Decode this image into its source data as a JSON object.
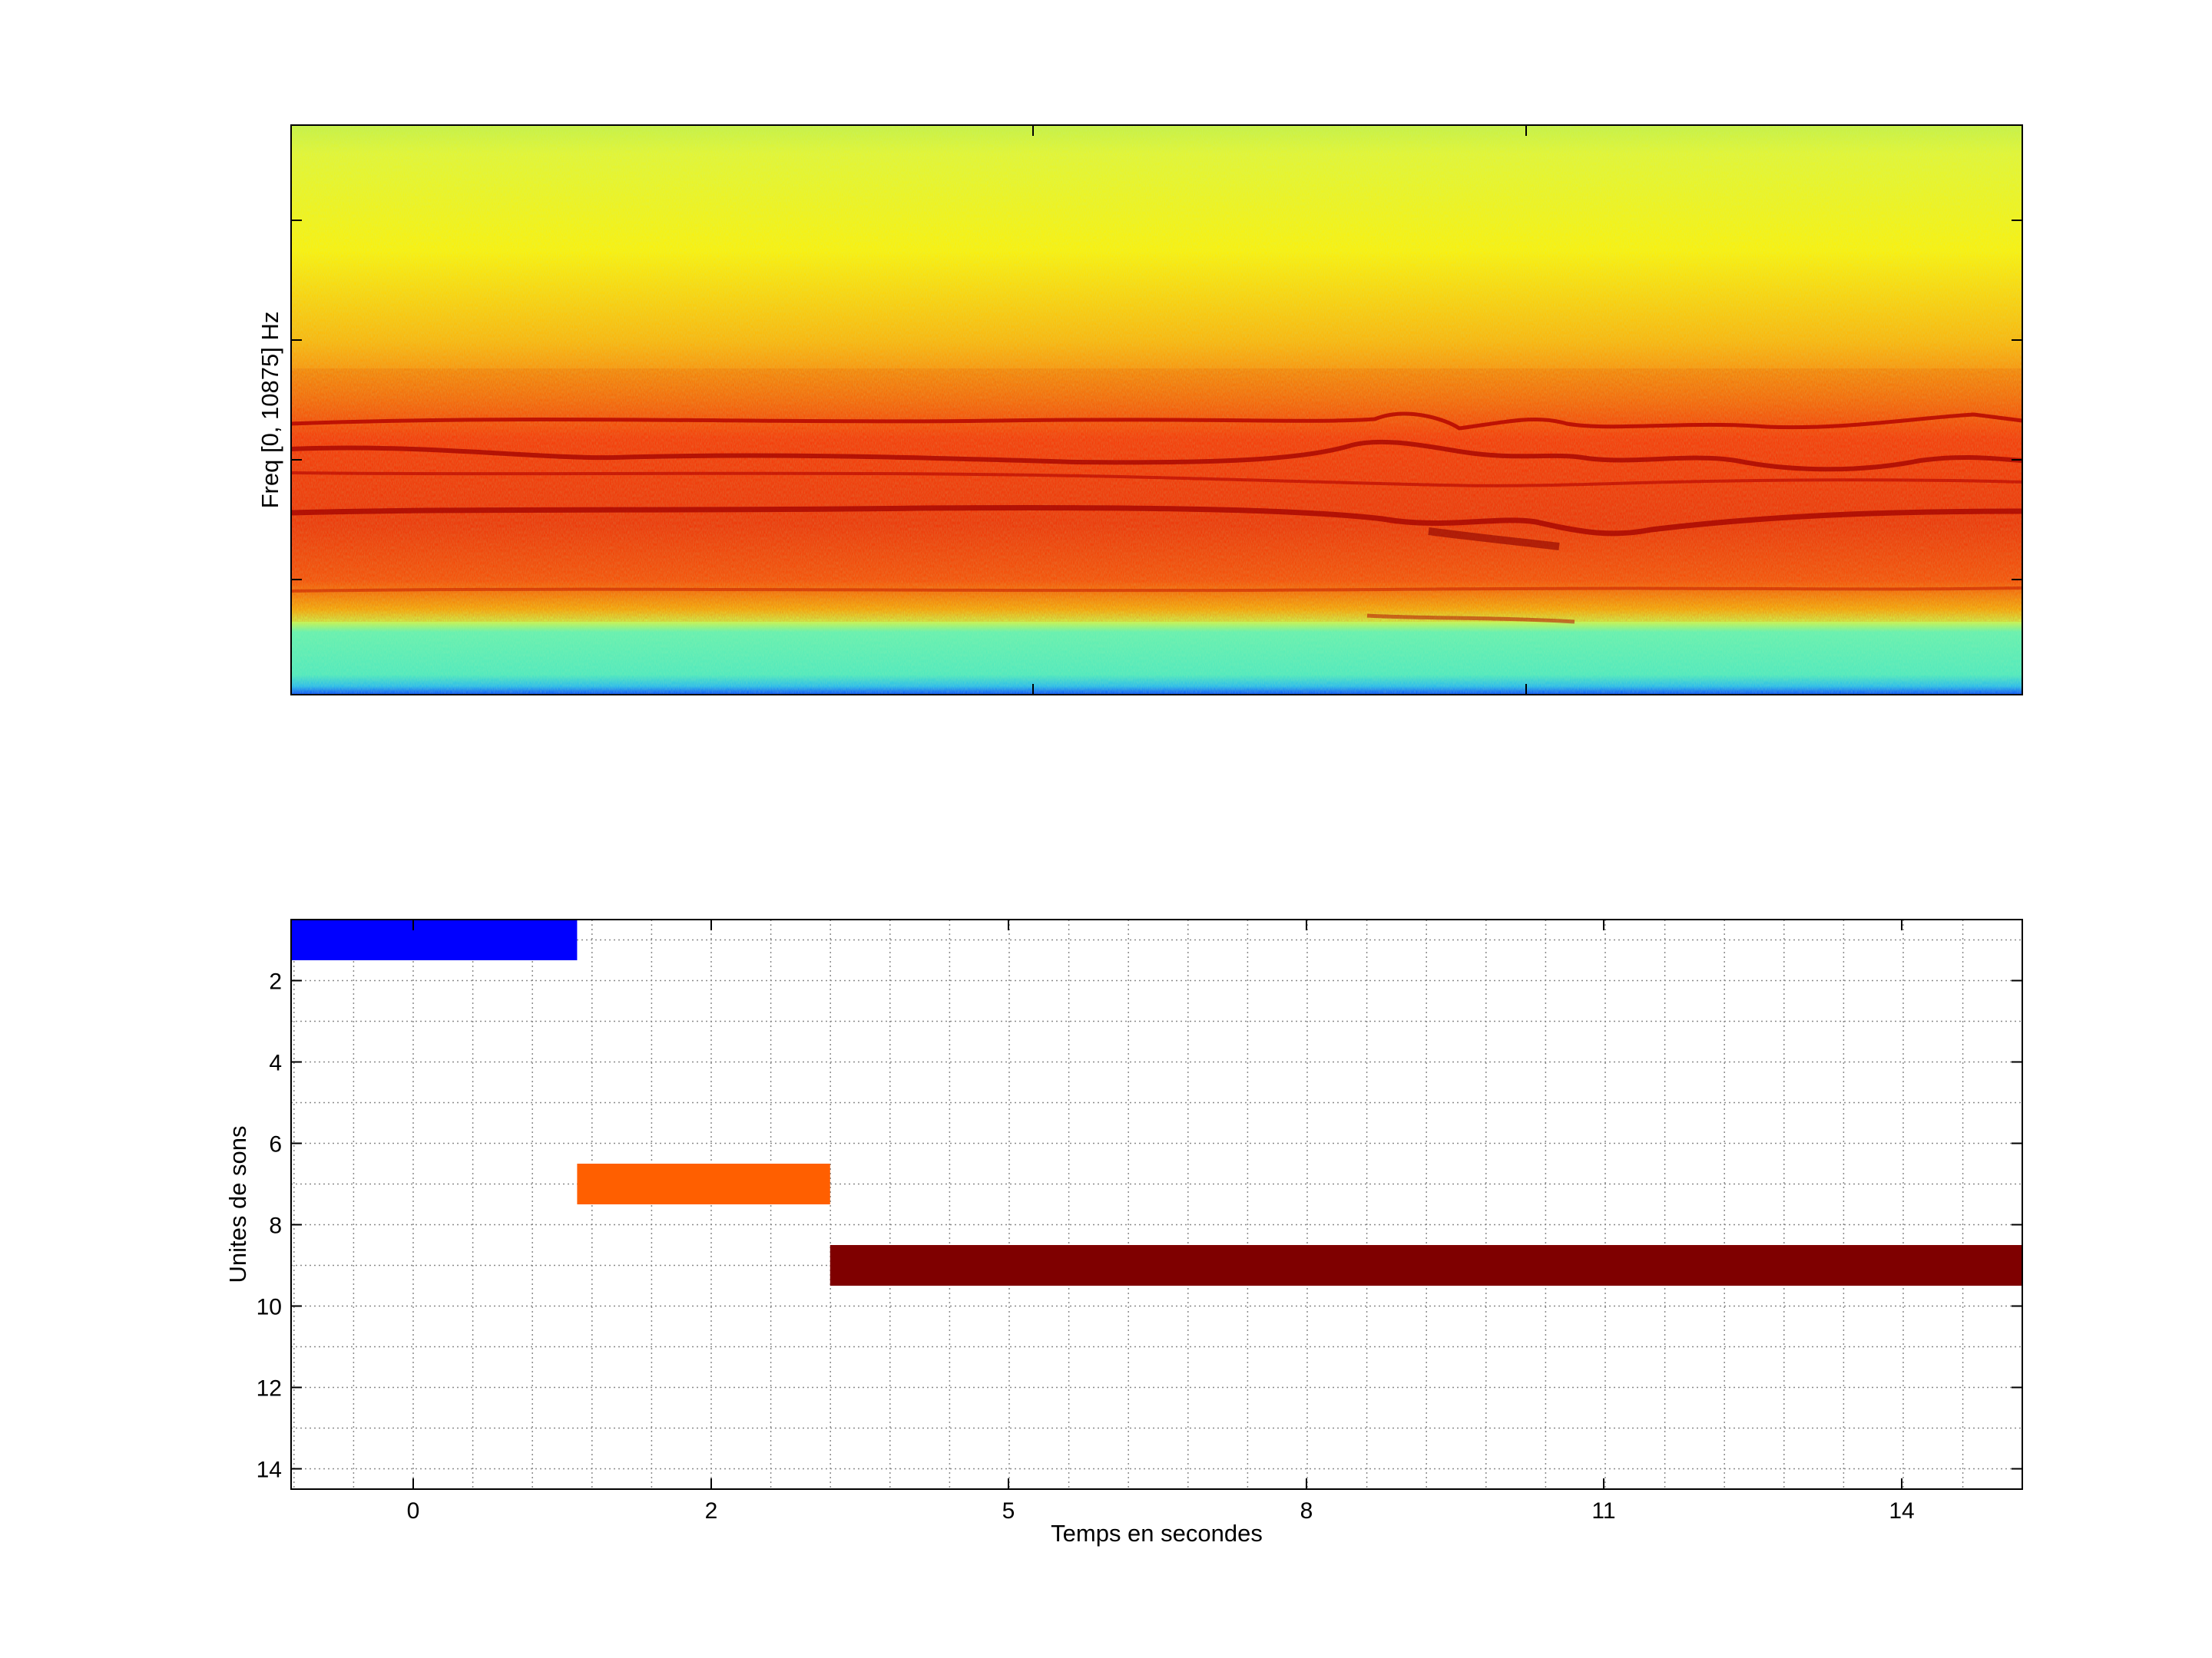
{
  "spectrogram_panel": {
    "ylabel": "Freq [0, 10875] Hz"
  },
  "chart_data": [
    {
      "type": "heatmap",
      "title": "",
      "xlabel": "",
      "ylabel": "Freq [0, 10875] Hz",
      "ylim": [
        0,
        10875
      ],
      "colormap": "jet",
      "grid": false,
      "description_bands": "noise background, strong energy in low-mid band"
    },
    {
      "type": "bar",
      "orientation": "horizontal-segments",
      "title": "",
      "xlabel": "Temps en secondes",
      "ylabel": "Unites de sons",
      "grid": true,
      "y_reversed": true,
      "xlim": [
        -1,
        16
      ],
      "ylim": [
        14.5,
        0.5
      ],
      "xticks": [
        0,
        2,
        5,
        8,
        11,
        14
      ],
      "xtick_labels": [
        "0",
        "2",
        "5",
        "8",
        "11",
        "14"
      ],
      "yticks": [
        2,
        4,
        6,
        8,
        10,
        12,
        14
      ],
      "ytick_labels": [
        "2",
        "4",
        "6",
        "8",
        "10",
        "12",
        "14"
      ],
      "segments": [
        {
          "unit": 1,
          "start": -1,
          "end": 1.1,
          "color": "#0000ff"
        },
        {
          "unit": 7,
          "start": 1.1,
          "end": 3.2,
          "color": "#ff5f00"
        },
        {
          "unit": 9,
          "start": 3.2,
          "end": 16,
          "color": "#7f0000"
        }
      ]
    }
  ]
}
